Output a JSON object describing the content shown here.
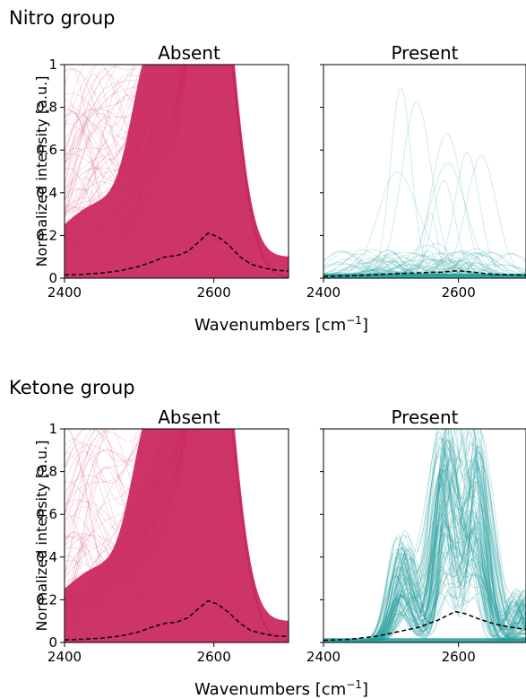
{
  "colors": {
    "absent": "#c9245a",
    "present": "#1b9a9a",
    "mean": "#000000"
  },
  "xlabel_main": "Wavenumbers [cm",
  "xlabel_sup": "−1",
  "xlabel_end": "]",
  "chart_data": [
    {
      "type": "line",
      "group_title": "Nitro group",
      "title": "Absent",
      "ylabel": "Normalized intensity [a.u.]",
      "xlim": [
        2400,
        2700
      ],
      "ylim": [
        0,
        1
      ],
      "x_ticks": [
        "2400",
        "2600"
      ],
      "y_ticks": [
        "0",
        "0.2",
        "0.4",
        "0.6",
        "0.8",
        "1"
      ],
      "mean_spectrum": {
        "name": "mean",
        "style": "dashed",
        "x": [
          2400,
          2425,
          2450,
          2475,
          2500,
          2520,
          2535,
          2550,
          2565,
          2580,
          2592,
          2605,
          2620,
          2635,
          2650,
          2670,
          2685,
          2700
        ],
        "y": [
          0.015,
          0.018,
          0.024,
          0.035,
          0.055,
          0.08,
          0.1,
          0.105,
          0.125,
          0.17,
          0.21,
          0.195,
          0.155,
          0.1,
          0.065,
          0.045,
          0.037,
          0.033
        ]
      }
    },
    {
      "type": "line",
      "group_title": "",
      "title": "Present",
      "xlim": [
        2400,
        2700
      ],
      "ylim": [
        0,
        1
      ],
      "x_ticks": [
        "2400",
        "2600"
      ],
      "mean_spectrum": {
        "name": "mean",
        "style": "dashed",
        "x": [
          2400,
          2450,
          2500,
          2550,
          2575,
          2600,
          2625,
          2650,
          2700
        ],
        "y": [
          0.008,
          0.012,
          0.02,
          0.026,
          0.028,
          0.035,
          0.027,
          0.018,
          0.014
        ]
      }
    },
    {
      "type": "line",
      "group_title": "Ketone group",
      "title": "Absent",
      "ylabel": "Normalized intensity [a.u.]",
      "xlim": [
        2400,
        2700
      ],
      "ylim": [
        0,
        1
      ],
      "x_ticks": [
        "2400",
        "2600"
      ],
      "y_ticks": [
        "0",
        "0.2",
        "0.4",
        "0.6",
        "0.8",
        "1"
      ],
      "mean_spectrum": {
        "name": "mean",
        "style": "dashed",
        "x": [
          2400,
          2425,
          2450,
          2475,
          2500,
          2520,
          2535,
          2550,
          2565,
          2580,
          2592,
          2605,
          2620,
          2635,
          2650,
          2670,
          2685,
          2700
        ],
        "y": [
          0.012,
          0.015,
          0.02,
          0.03,
          0.05,
          0.075,
          0.09,
          0.095,
          0.115,
          0.16,
          0.195,
          0.18,
          0.14,
          0.09,
          0.055,
          0.038,
          0.03,
          0.028
        ]
      }
    },
    {
      "type": "line",
      "group_title": "",
      "title": "Present",
      "xlim": [
        2400,
        2700
      ],
      "ylim": [
        0,
        1
      ],
      "x_ticks": [
        "2400",
        "2600"
      ],
      "mean_spectrum": {
        "name": "mean",
        "style": "dashed",
        "x": [
          2400,
          2440,
          2480,
          2510,
          2540,
          2570,
          2595,
          2610,
          2630,
          2655,
          2680,
          2700
        ],
        "y": [
          0.01,
          0.015,
          0.03,
          0.05,
          0.07,
          0.105,
          0.145,
          0.135,
          0.11,
          0.085,
          0.07,
          0.062
        ]
      }
    }
  ]
}
